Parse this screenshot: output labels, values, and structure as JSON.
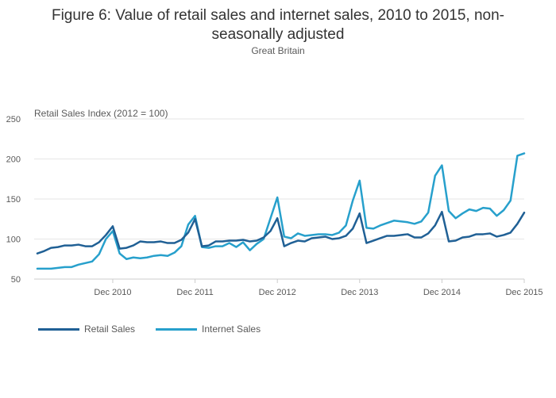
{
  "chart_data": {
    "type": "line",
    "title_line1": "Figure 6: Value of retail sales and internet sales, 2010 to 2015, non-",
    "title_line2": "seasonally adjusted",
    "subtitle": "Great Britain",
    "ylabel": "Retail Sales Index (2012 = 100)",
    "xlabel": "",
    "ylim": [
      50,
      250
    ],
    "yticks": [
      50,
      100,
      150,
      200,
      250
    ],
    "x_start": "Jan 2010",
    "x_end": "Dec 2015",
    "xticks": [
      {
        "label": "Dec 2010",
        "index": 11
      },
      {
        "label": "Dec 2011",
        "index": 23
      },
      {
        "label": "Dec 2012",
        "index": 35
      },
      {
        "label": "Dec 2013",
        "index": 47
      },
      {
        "label": "Dec 2014",
        "index": 59
      },
      {
        "label": "Dec 2015",
        "index": 71
      }
    ],
    "legend_position": "bottom-left",
    "series": [
      {
        "name": "Retail Sales",
        "color": "#206095",
        "values": [
          82,
          85,
          89,
          90,
          92,
          92,
          93,
          91,
          91,
          96,
          105,
          116,
          88,
          89,
          92,
          97,
          96,
          96,
          97,
          95,
          95,
          99,
          108,
          125,
          91,
          92,
          97,
          97,
          98,
          98,
          99,
          97,
          98,
          102,
          110,
          126,
          91,
          95,
          98,
          97,
          101,
          102,
          103,
          100,
          101,
          104,
          113,
          132,
          95,
          98,
          101,
          104,
          104,
          105,
          106,
          102,
          102,
          107,
          117,
          134,
          97,
          98,
          102,
          103,
          106,
          106,
          107,
          103,
          105,
          108,
          119,
          133
        ]
      },
      {
        "name": "Internet Sales",
        "color": "#27a0cc",
        "values": [
          63,
          63,
          63,
          64,
          65,
          65,
          68,
          70,
          72,
          81,
          100,
          110,
          82,
          75,
          77,
          76,
          77,
          79,
          80,
          79,
          83,
          91,
          118,
          129,
          90,
          89,
          91,
          91,
          95,
          90,
          96,
          86,
          94,
          100,
          126,
          152,
          103,
          101,
          107,
          104,
          105,
          106,
          106,
          105,
          108,
          117,
          148,
          173,
          114,
          113,
          117,
          120,
          123,
          122,
          121,
          119,
          122,
          133,
          179,
          192,
          135,
          126,
          132,
          137,
          135,
          139,
          138,
          129,
          136,
          148,
          204,
          207
        ]
      }
    ]
  }
}
